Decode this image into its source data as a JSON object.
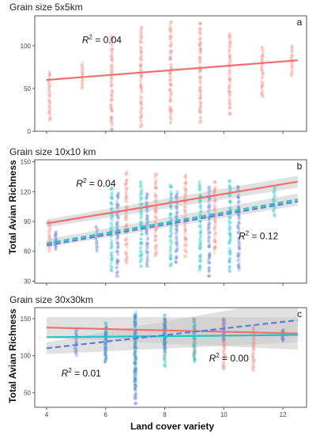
{
  "figure": {
    "y_axis_label": "Total Avian Richness",
    "x_axis_label": "Land cover variety"
  },
  "colors": {
    "red": "#f07070",
    "red_points": "#f28b82",
    "teal": "#22c4c4",
    "blue": "#5b7fd4",
    "ci_band": "#c8c8c8",
    "panel_border": "#555555"
  },
  "chart_data": [
    {
      "type": "scatter",
      "panel_label": "a",
      "title": "Grain size 5x5km",
      "xlim": [
        3.6,
        12.8
      ],
      "ylim": [
        0,
        135
      ],
      "y_ticks": [
        0,
        50,
        100
      ],
      "x_ticks": [
        4,
        6,
        8,
        10,
        12
      ],
      "show_x_tick_labels": false,
      "annotations": [
        {
          "base": "R",
          "exp": "2",
          "rest": " = 0.04",
          "x": 5.2,
          "y": 103
        }
      ],
      "series": [
        {
          "color_key": "red",
          "trend": {
            "x": [
              4,
              12.5
            ],
            "y": [
              60,
              83
            ],
            "dashed": false
          },
          "point_columns": [
            {
              "x": 4.1,
              "min": 12,
              "max": 70
            },
            {
              "x": 5.2,
              "min": 50,
              "max": 80
            },
            {
              "x": 6.2,
              "min": 0,
              "max": 112
            },
            {
              "x": 7.2,
              "min": 5,
              "max": 122
            },
            {
              "x": 8.2,
              "min": 10,
              "max": 128
            },
            {
              "x": 9.2,
              "min": 10,
              "max": 128
            },
            {
              "x": 10.2,
              "min": 20,
              "max": 115
            },
            {
              "x": 11.3,
              "min": 40,
              "max": 98
            },
            {
              "x": 12.3,
              "min": 65,
              "max": 100
            }
          ]
        }
      ]
    },
    {
      "type": "scatter",
      "panel_label": "b",
      "title": "Grain size 10x10 km",
      "xlim": [
        3.6,
        12.8
      ],
      "ylim": [
        28,
        152
      ],
      "y_ticks": [
        30,
        60,
        90,
        120,
        150
      ],
      "x_ticks": [
        4,
        6,
        8,
        10,
        12
      ],
      "show_x_tick_labels": false,
      "annotations": [
        {
          "base": "R",
          "exp": "2",
          "rest": " = 0.04",
          "x": 5.0,
          "y": 125
        },
        {
          "base": "R",
          "exp": "2",
          "rest": " = 0.12",
          "x": 10.5,
          "y": 72
        }
      ],
      "series": [
        {
          "color_key": "red",
          "trend": {
            "x": [
              4,
              12.5
            ],
            "y": [
              88,
              130
            ],
            "dashed": false
          },
          "ci_band": {
            "x": [
              4,
              12.5
            ],
            "lower": [
              84,
              124
            ],
            "upper": [
              92,
              136
            ]
          },
          "point_columns": [
            {
              "x": 4.1,
              "min": 60,
              "max": 90
            },
            {
              "x": 6.7,
              "min": 48,
              "max": 140
            },
            {
              "x": 7.7,
              "min": 55,
              "max": 138
            },
            {
              "x": 8.7,
              "min": 55,
              "max": 136
            },
            {
              "x": 9.7,
              "min": 58,
              "max": 130
            }
          ]
        },
        {
          "color_key": "teal",
          "trend": {
            "x": [
              4,
              12.5
            ],
            "y": [
              68,
              112
            ],
            "dashed": true
          },
          "ci_band": {
            "x": [
              4,
              12.5
            ],
            "lower": [
              64,
              106
            ],
            "upper": [
              72,
              118
            ]
          },
          "point_columns": [
            {
              "x": 6.2,
              "min": 40,
              "max": 125
            },
            {
              "x": 7.2,
              "min": 45,
              "max": 130
            },
            {
              "x": 8.2,
              "min": 45,
              "max": 128
            },
            {
              "x": 9.2,
              "min": 40,
              "max": 130
            },
            {
              "x": 10.2,
              "min": 40,
              "max": 132
            },
            {
              "x": 11.7,
              "min": 95,
              "max": 125
            }
          ]
        },
        {
          "color_key": "blue",
          "trend": {
            "x": [
              4,
              12.5
            ],
            "y": [
              66,
              110
            ],
            "dashed": true
          },
          "point_columns": [
            {
              "x": 4.3,
              "min": 62,
              "max": 80
            },
            {
              "x": 5.7,
              "min": 60,
              "max": 85
            },
            {
              "x": 6.4,
              "min": 35,
              "max": 120
            },
            {
              "x": 7.4,
              "min": 45,
              "max": 118
            },
            {
              "x": 8.4,
              "min": 48,
              "max": 120
            },
            {
              "x": 9.5,
              "min": 35,
              "max": 125
            },
            {
              "x": 10.5,
              "min": 40,
              "max": 125
            }
          ]
        }
      ]
    },
    {
      "type": "scatter",
      "panel_label": "c",
      "title": "Grain size 30x30km",
      "xlim": [
        3.6,
        12.8
      ],
      "ylim": [
        30,
        165
      ],
      "y_ticks": [
        50,
        100,
        150
      ],
      "x_ticks": [
        4,
        6,
        8,
        10,
        12
      ],
      "show_x_tick_labels": true,
      "annotations": [
        {
          "base": "R",
          "exp": "2",
          "rest": " = 0.01",
          "x": 4.5,
          "y": 72
        },
        {
          "base": "R",
          "exp": "2",
          "rest": " = 0.00",
          "x": 9.5,
          "y": 92
        }
      ],
      "series": [
        {
          "color_key": "red",
          "trend": {
            "x": [
              4,
              12.5
            ],
            "y": [
              138,
              130
            ],
            "dashed": false
          },
          "ci_band": {
            "x": [
              4,
              12.5
            ],
            "lower": [
              124,
              108
            ],
            "upper": [
              152,
              152
            ]
          },
          "point_columns": [
            {
              "x": 8.0,
              "min": 100,
              "max": 150
            },
            {
              "x": 9.0,
              "min": 95,
              "max": 150
            },
            {
              "x": 10.0,
              "min": 80,
              "max": 150
            },
            {
              "x": 11.0,
              "min": 80,
              "max": 140
            }
          ]
        },
        {
          "color_key": "teal",
          "trend": {
            "x": [
              4,
              12.5
            ],
            "y": [
              125,
              128
            ],
            "dashed": false
          },
          "point_columns": [
            {
              "x": 6.0,
              "min": 95,
              "max": 145
            },
            {
              "x": 7.0,
              "min": 60,
              "max": 160
            },
            {
              "x": 8.0,
              "min": 85,
              "max": 155
            },
            {
              "x": 9.0,
              "min": 90,
              "max": 150
            }
          ]
        },
        {
          "color_key": "blue",
          "trend": {
            "x": [
              4,
              12.5
            ],
            "y": [
              110,
              148
            ],
            "dashed": true
          },
          "ci_band": {
            "x": [
              4,
              12.5
            ],
            "lower": [
              102,
              118
            ],
            "upper": [
              118,
              178
            ]
          },
          "point_columns": [
            {
              "x": 5.0,
              "min": 100,
              "max": 135
            },
            {
              "x": 6.0,
              "min": 90,
              "max": 140
            },
            {
              "x": 7.0,
              "min": 35,
              "max": 158
            },
            {
              "x": 8.0,
              "min": 110,
              "max": 150
            },
            {
              "x": 10.0,
              "min": 120,
              "max": 150
            },
            {
              "x": 12.0,
              "min": 120,
              "max": 135
            }
          ]
        }
      ]
    }
  ]
}
